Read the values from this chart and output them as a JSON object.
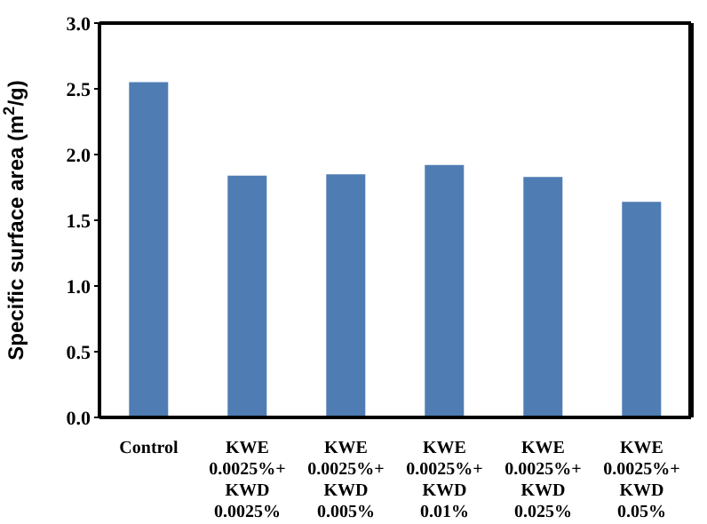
{
  "chart_data": {
    "type": "bar",
    "ylabel": "Specific surface area (m$^{2}$/g)",
    "categories": [
      "Control",
      "KWE\n0.0025%+\nKWD\n0.0025%",
      "KWE\n0.0025%+\nKWD\n0.005%",
      "KWE\n0.0025%+\nKWD\n0.01%",
      "KWE\n0.0025%+\nKWD\n0.025%",
      "KWE\n0.0025%+\nKWD\n0.05%"
    ],
    "values": [
      2.55,
      1.84,
      1.85,
      1.92,
      1.83,
      1.64
    ],
    "color": "#4f7db3",
    "ylim": [
      0,
      3
    ],
    "yticks": [
      {
        "value": 0,
        "label": "0.0"
      },
      {
        "value": 0.5,
        "label": "0.5"
      },
      {
        "value": 1,
        "label": "1.0"
      },
      {
        "value": 1.5,
        "label": "1.5"
      },
      {
        "value": 2,
        "label": "2.0"
      },
      {
        "value": 2.5,
        "label": "2.5"
      },
      {
        "value": 3,
        "label": "3.0"
      }
    ],
    "grid": false,
    "legend": false
  }
}
